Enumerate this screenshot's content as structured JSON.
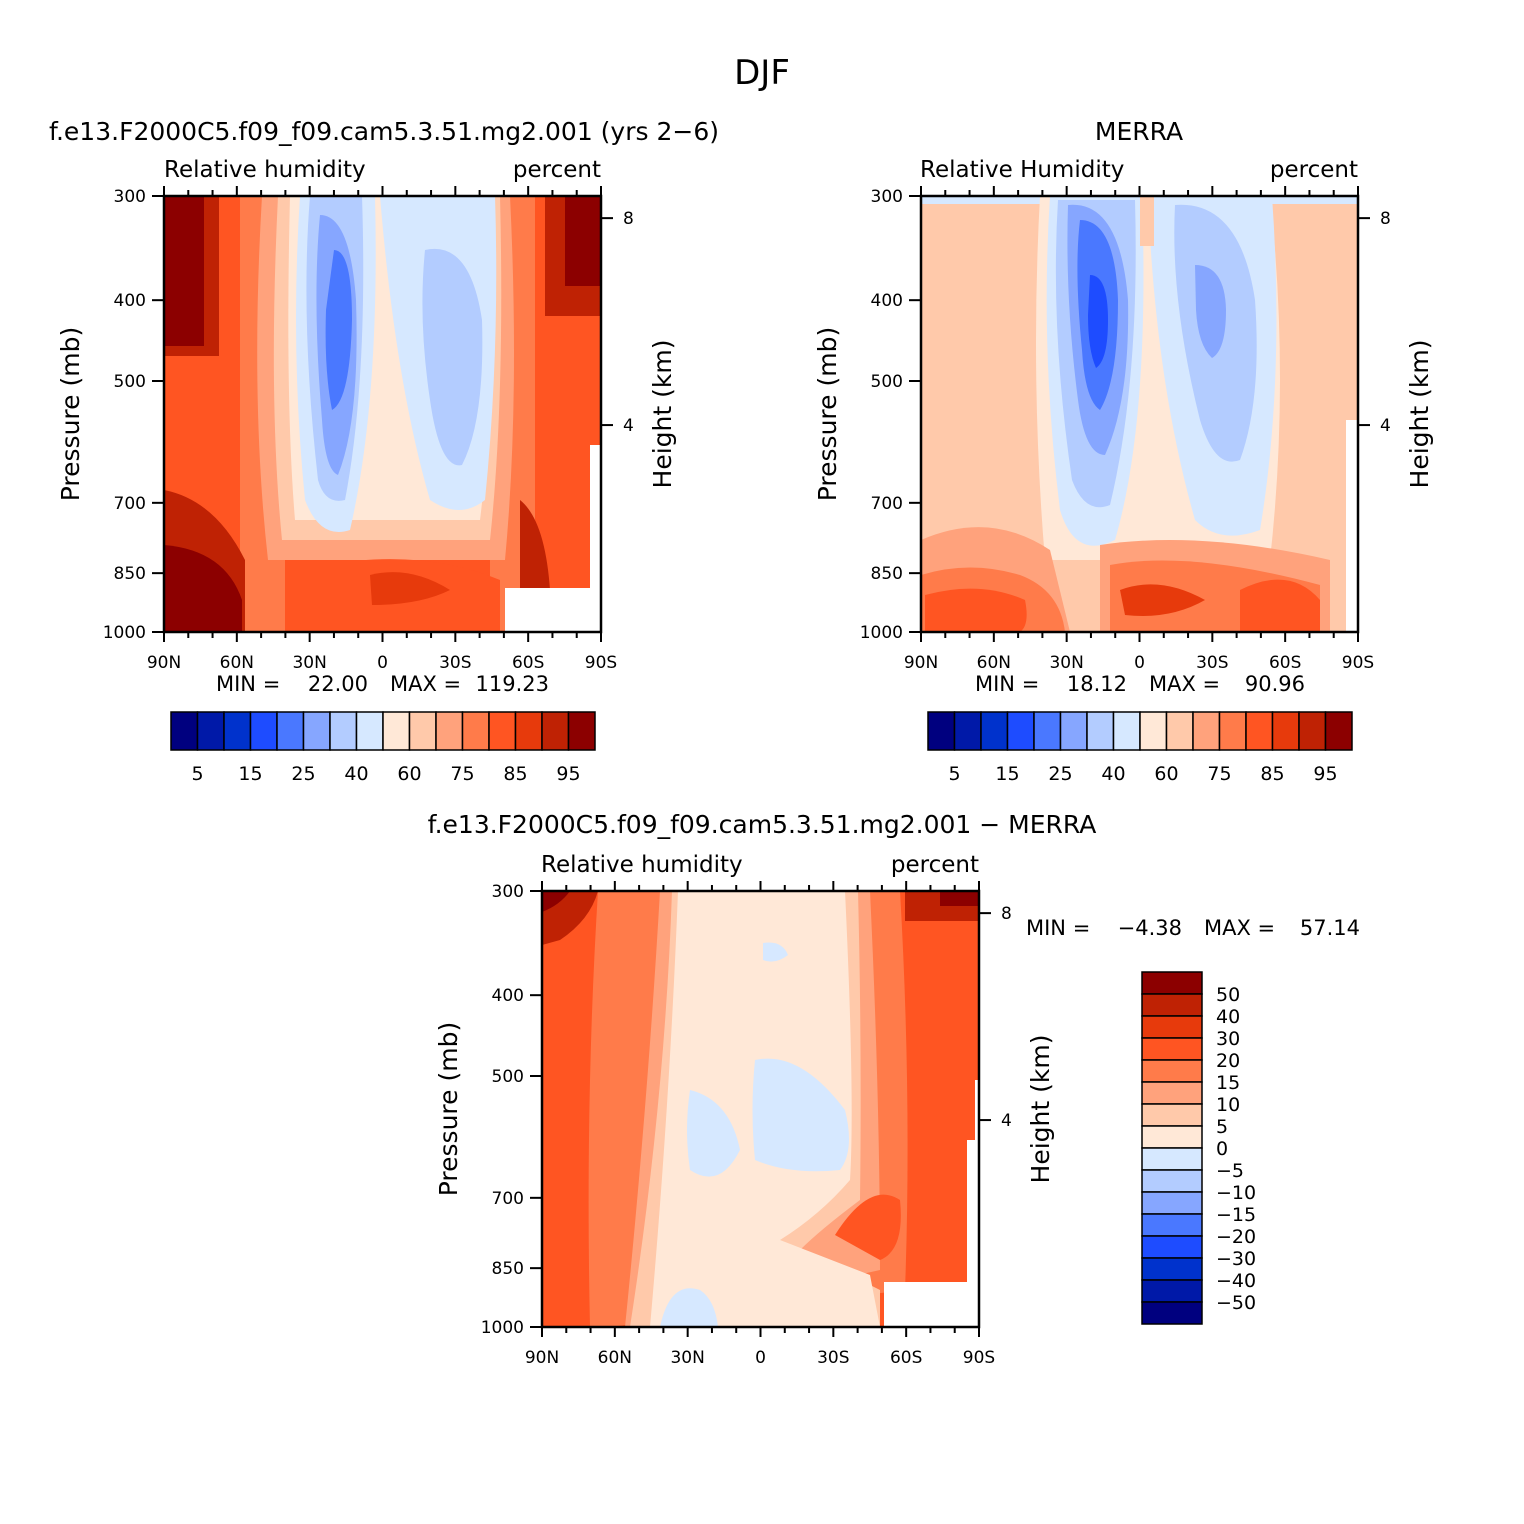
{
  "figure_title": "DJF",
  "chart_data": [
    {
      "type": "contour",
      "panel": "model",
      "title": "f.e13.F2000C5.f09_f09.cam5.3.51.mg2.001 (yrs 2−6)",
      "left_label": "Relative humidity",
      "right_label": "percent",
      "xlabel": "",
      "ylabel": "Pressure (mb)",
      "ylabel_right": "Height (km)",
      "x_ticks": [
        "90N",
        "60N",
        "30N",
        "0",
        "30S",
        "60S",
        "90S"
      ],
      "y_ticks": [
        "300",
        "400",
        "500",
        "700",
        "850",
        "1000"
      ],
      "y_ticks_right": [
        "8",
        "4"
      ],
      "min_label": "MIN =",
      "min_value": "22.00",
      "max_label": "MAX =",
      "max_value": "119.23",
      "colorbar_labels": [
        "5",
        "15",
        "25",
        "40",
        "60",
        "75",
        "85",
        "95"
      ],
      "levels": [
        5,
        10,
        15,
        20,
        25,
        30,
        40,
        50,
        60,
        70,
        75,
        80,
        85,
        90,
        95
      ]
    },
    {
      "type": "contour",
      "panel": "obs",
      "title": "MERRA",
      "left_label": "Relative Humidity",
      "right_label": "percent",
      "xlabel": "",
      "ylabel": "Pressure (mb)",
      "ylabel_right": "Height (km)",
      "x_ticks": [
        "90N",
        "60N",
        "30N",
        "0",
        "30S",
        "60S",
        "90S"
      ],
      "y_ticks": [
        "300",
        "400",
        "500",
        "700",
        "850",
        "1000"
      ],
      "y_ticks_right": [
        "8",
        "4"
      ],
      "min_label": "MIN =",
      "min_value": "18.12",
      "max_label": "MAX =",
      "max_value": "90.96",
      "colorbar_labels": [
        "5",
        "15",
        "25",
        "40",
        "60",
        "75",
        "85",
        "95"
      ],
      "levels": [
        5,
        10,
        15,
        20,
        25,
        30,
        40,
        50,
        60,
        70,
        75,
        80,
        85,
        90,
        95
      ]
    },
    {
      "type": "contour",
      "panel": "diff",
      "title": "f.e13.F2000C5.f09_f09.cam5.3.51.mg2.001 − MERRA",
      "left_label": "Relative humidity",
      "right_label": "percent",
      "xlabel": "",
      "ylabel": "Pressure (mb)",
      "ylabel_right": "Height (km)",
      "x_ticks": [
        "90N",
        "60N",
        "30N",
        "0",
        "30S",
        "60S",
        "90S"
      ],
      "y_ticks": [
        "300",
        "400",
        "500",
        "700",
        "850",
        "1000"
      ],
      "y_ticks_right": [
        "8",
        "4"
      ],
      "min_label": "MIN =",
      "min_value": "−4.38",
      "max_label": "MAX =",
      "max_value": "57.14",
      "colorbar_labels": [
        "50",
        "40",
        "30",
        "20",
        "15",
        "10",
        "5",
        "0",
        "−5",
        "−10",
        "−15",
        "−20",
        "−30",
        "−40",
        "−50"
      ],
      "levels": [
        -50,
        -40,
        -30,
        -20,
        -15,
        -10,
        -5,
        0,
        5,
        10,
        15,
        20,
        30,
        40,
        50
      ]
    }
  ],
  "palette": [
    "#00007f",
    "#0019a8",
    "#0032cc",
    "#1e4cff",
    "#4a78ff",
    "#86a6ff",
    "#b3ccff",
    "#d6e8ff",
    "#ffe8d7",
    "#ffc9aa",
    "#ffa27c",
    "#ff7b4a",
    "#ff5522",
    "#e73a0c",
    "#bf2204",
    "#8c0000"
  ]
}
